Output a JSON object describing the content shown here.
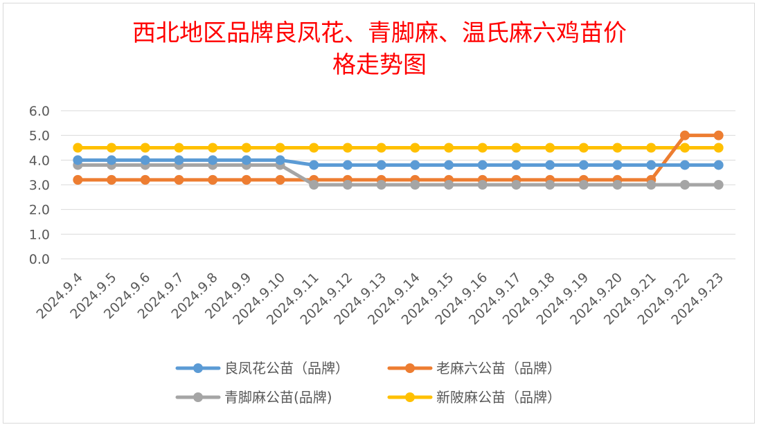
{
  "chart_data": {
    "type": "line",
    "title_line1": "西北地区品牌良凤花、青脚麻、温氏麻六鸡苗价",
    "title_line2": "格走势图",
    "xlabel": "",
    "ylabel": "",
    "ylim": [
      0,
      6
    ],
    "yticks": [
      "0.0",
      "1.0",
      "2.0",
      "3.0",
      "4.0",
      "5.0",
      "6.0"
    ],
    "grid": true,
    "legend_position": "bottom",
    "categories": [
      "2024.9.4",
      "2024.9.5",
      "2024.9.6",
      "2024.9.7",
      "2024.9.8",
      "2024.9.9",
      "2024.9.10",
      "2024.9.11",
      "2024.9.12",
      "2024.9.13",
      "2024.9.14",
      "2024.9.15",
      "2024.9.16",
      "2024.9.17",
      "2024.9.18",
      "2024.9.19",
      "2024.9.20",
      "2024.9.21",
      "2024.9.22",
      "2024.9.23"
    ],
    "series": [
      {
        "name": "良凤花公苗（品牌）",
        "color": "#5b9bd5",
        "values": [
          4.0,
          4.0,
          4.0,
          4.0,
          4.0,
          4.0,
          4.0,
          3.8,
          3.8,
          3.8,
          3.8,
          3.8,
          3.8,
          3.8,
          3.8,
          3.8,
          3.8,
          3.8,
          3.8,
          3.8
        ]
      },
      {
        "name": "老麻六公苗（品牌）",
        "color": "#ed7d31",
        "values": [
          3.2,
          3.2,
          3.2,
          3.2,
          3.2,
          3.2,
          3.2,
          3.2,
          3.2,
          3.2,
          3.2,
          3.2,
          3.2,
          3.2,
          3.2,
          3.2,
          3.2,
          3.2,
          5.0,
          5.0
        ]
      },
      {
        "name": "青脚麻公苗(品牌)",
        "color": "#a5a5a5",
        "values": [
          3.8,
          3.8,
          3.8,
          3.8,
          3.8,
          3.8,
          3.8,
          3.0,
          3.0,
          3.0,
          3.0,
          3.0,
          3.0,
          3.0,
          3.0,
          3.0,
          3.0,
          3.0,
          3.0,
          3.0
        ]
      },
      {
        "name": "新陂麻公苗（品牌）",
        "color": "#ffc000",
        "values": [
          4.5,
          4.5,
          4.5,
          4.5,
          4.5,
          4.5,
          4.5,
          4.5,
          4.5,
          4.5,
          4.5,
          4.5,
          4.5,
          4.5,
          4.5,
          4.5,
          4.5,
          4.5,
          4.5,
          4.5
        ]
      }
    ]
  }
}
